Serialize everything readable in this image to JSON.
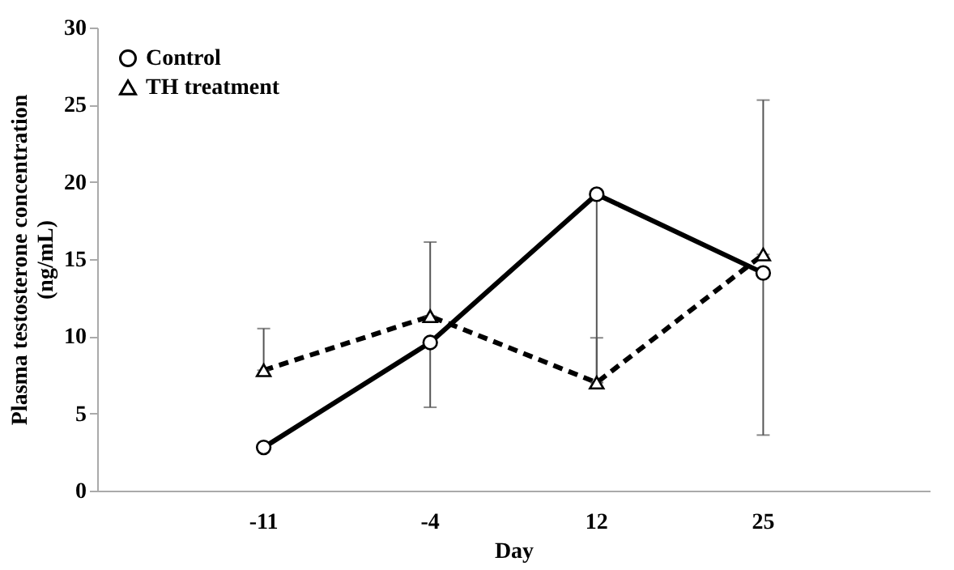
{
  "chart_data": {
    "type": "line",
    "xlabel": "Day",
    "ylabel": "Plasma testosterone concentration\n(ng/mL)",
    "categories": [
      "-11",
      "-4",
      "12",
      "25"
    ],
    "series": [
      {
        "name": "Control",
        "color": "#000000",
        "marker": "circle",
        "line_style": "solid",
        "values": [
          2.8,
          9.6,
          19.2,
          14.1
        ],
        "errors": [
          null,
          [
            5.4,
            9.6
          ],
          [
            7.0,
            19.2
          ],
          [
            3.6,
            14.1
          ]
        ]
      },
      {
        "name": "TH treatment",
        "color": "#000000",
        "marker": "triangle",
        "line_style": "dashed",
        "values": [
          7.8,
          11.3,
          7.0,
          15.3
        ],
        "errors": [
          [
            7.8,
            10.5
          ],
          [
            11.3,
            16.1
          ],
          [
            7.0,
            9.9
          ],
          [
            15.3,
            25.3
          ]
        ]
      }
    ],
    "ylim": [
      0,
      30
    ],
    "yticks": [
      0,
      5,
      10,
      15,
      20,
      25,
      30
    ],
    "grid": false,
    "legend": "top left"
  }
}
